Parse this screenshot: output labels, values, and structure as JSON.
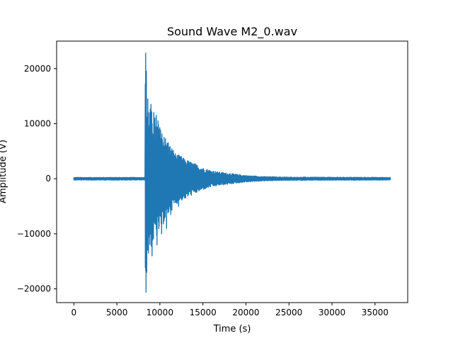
{
  "chart_data": {
    "type": "line",
    "title": "Sound Wave M2_0.wav",
    "xlabel": "Time (s)",
    "ylabel": "Amplitude (V)",
    "xlim": [
      -2000,
      38800
    ],
    "ylim": [
      -22500,
      25000
    ],
    "xticks": [
      0,
      5000,
      10000,
      15000,
      20000,
      25000,
      30000,
      35000
    ],
    "xtick_labels": [
      "0",
      "5000",
      "10000",
      "15000",
      "20000",
      "25000",
      "30000",
      "35000"
    ],
    "yticks": [
      -20000,
      -10000,
      0,
      10000,
      20000
    ],
    "ytick_labels": [
      "−20000",
      "−10000",
      "0",
      "10000",
      "20000"
    ],
    "grid": false,
    "legend": "none",
    "series": [
      {
        "color": "#1f77b4",
        "signal": {
          "x_start": 0,
          "x_end": 36800,
          "onset_x": 8300,
          "peak_x": 8400,
          "peak_max": 22800,
          "peak_min": -20600,
          "noise_amplitude": 250,
          "envelope": [
            [
              8300,
              18000
            ],
            [
              8500,
              14000
            ],
            [
              9000,
              12500
            ],
            [
              9500,
              11000
            ],
            [
              10000,
              9500
            ],
            [
              10500,
              8000
            ],
            [
              11000,
              6500
            ],
            [
              11500,
              5500
            ],
            [
              12000,
              4500
            ],
            [
              13000,
              3500
            ],
            [
              14000,
              2800
            ],
            [
              15000,
              2000
            ],
            [
              16000,
              1500
            ],
            [
              17000,
              1200
            ],
            [
              18000,
              1000
            ],
            [
              19000,
              800
            ],
            [
              20000,
              600
            ],
            [
              22000,
              400
            ],
            [
              25000,
              300
            ],
            [
              36800,
              250
            ]
          ],
          "spikes": [
            [
              8380,
              22800
            ],
            [
              8420,
              -20600
            ],
            [
              8450,
              19500
            ],
            [
              8500,
              -17000
            ],
            [
              8600,
              14500
            ],
            [
              8700,
              -13500
            ],
            [
              9000,
              13500
            ],
            [
              9100,
              -14000
            ],
            [
              9300,
              12000
            ],
            [
              9600,
              11500
            ],
            [
              9800,
              10500
            ],
            [
              9700,
              -12000
            ],
            [
              10100,
              8800
            ],
            [
              10200,
              -10000
            ],
            [
              10500,
              7500
            ],
            [
              10800,
              -9000
            ],
            [
              11000,
              6500
            ],
            [
              11300,
              -6500
            ],
            [
              11800,
              4500
            ],
            [
              12200,
              -5000
            ],
            [
              12500,
              4000
            ],
            [
              13000,
              -3500
            ],
            [
              16000,
              -800
            ],
            [
              16500,
              1200
            ],
            [
              18200,
              900
            ],
            [
              19300,
              -700
            ]
          ]
        }
      }
    ]
  }
}
